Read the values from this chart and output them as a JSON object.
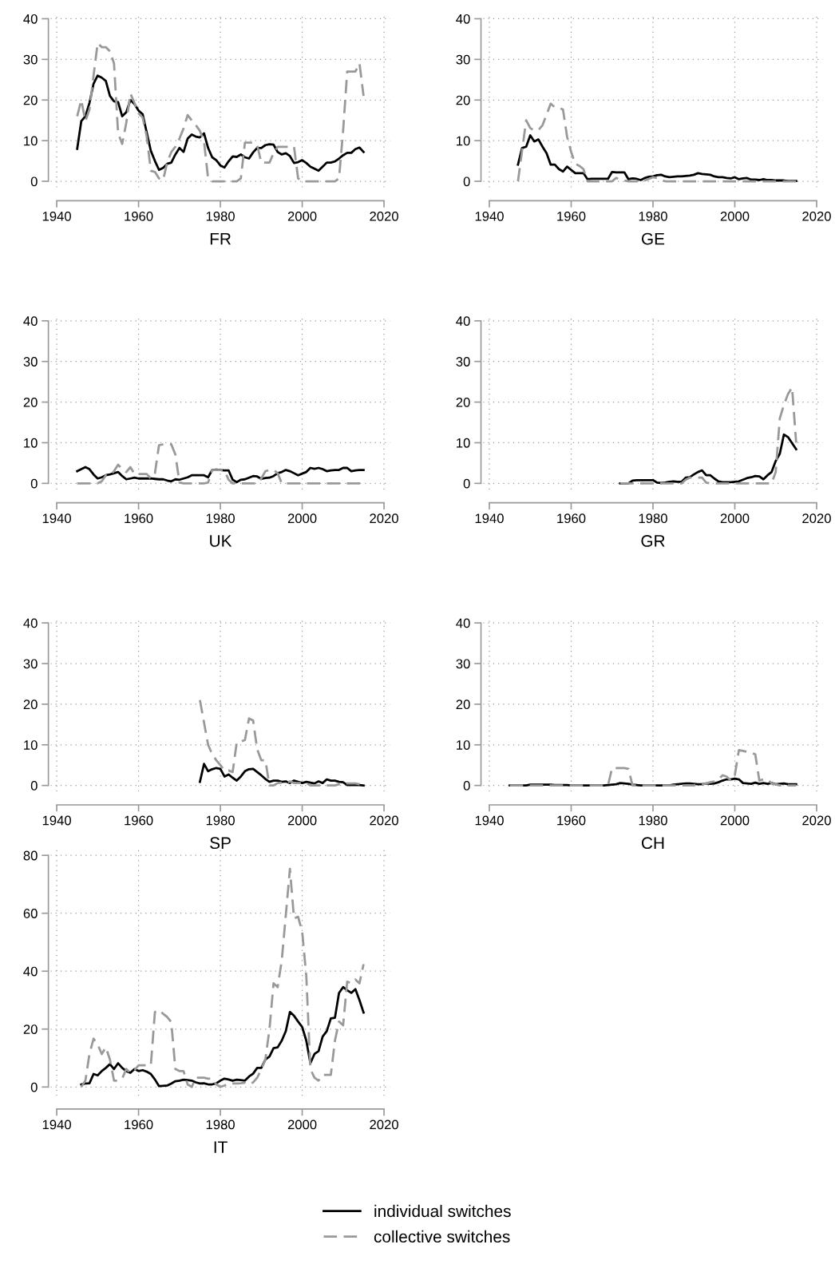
{
  "chart_data": [
    {
      "type": "line",
      "xlabel": "FR",
      "xlim": [
        1938.5,
        2021.5
      ],
      "xticks": [
        1940,
        1960,
        1980,
        2000,
        2020
      ],
      "ylim": [
        -1.5,
        41.5
      ],
      "yticks": [
        0,
        10,
        20,
        30,
        40
      ],
      "grid": true,
      "legend": "bottom",
      "x": [
        1945,
        1946,
        1947,
        1948,
        1949,
        1950,
        1951,
        1952,
        1953,
        1954,
        1955,
        1956,
        1957,
        1958,
        1959,
        1960,
        1961,
        1962,
        1963,
        1964,
        1965,
        1966,
        1967,
        1968,
        1969,
        1970,
        1971,
        1972,
        1973,
        1974,
        1975,
        1976,
        1977,
        1978,
        1979,
        1980,
        1981,
        1982,
        1983,
        1984,
        1985,
        1986,
        1987,
        1988,
        1989,
        1990,
        1991,
        1992,
        1993,
        1994,
        1995,
        1996,
        1997,
        1998,
        1999,
        2000,
        2001,
        2002,
        2003,
        2004,
        2005,
        2006,
        2007,
        2008,
        2009,
        2010,
        2011,
        2012,
        2013,
        2014,
        2015
      ],
      "series": [
        {
          "name": "individual switches",
          "color": "#000000",
          "line_style": "solid",
          "values": [
            8,
            14.8,
            16,
            19.3,
            24,
            26,
            25.5,
            24.7,
            21,
            19.7,
            19.5,
            16,
            17,
            20,
            19,
            17.4,
            16.5,
            12,
            7.5,
            5,
            2.8,
            3.3,
            4.3,
            4.6,
            6.6,
            8.2,
            7.2,
            10.5,
            11.5,
            11,
            10.8,
            11.8,
            8.2,
            5.9,
            5.2,
            3.9,
            3.4,
            4.9,
            6.1,
            6,
            6.6,
            5.9,
            5.6,
            7.1,
            8.2,
            8.2,
            8.9,
            9.1,
            9,
            7.2,
            6.6,
            6.9,
            6.2,
            4.5,
            4.7,
            5.2,
            4.5,
            3.6,
            3.1,
            2.6,
            3.6,
            4.6,
            4.6,
            4.9,
            5.6,
            6.4,
            7,
            7,
            7.9,
            8.3,
            7.2
          ]
        },
        {
          "name": "collective switches",
          "color": "#999999",
          "line_style": "dashed",
          "values": [
            16,
            20,
            14.8,
            17.7,
            26,
            34,
            33,
            33,
            32,
            29,
            11.8,
            9.2,
            14.4,
            21.6,
            19.3,
            16.7,
            15.7,
            11,
            2.6,
            2.3,
            0.7,
            0.3,
            4.6,
            7.2,
            8.5,
            10.5,
            13,
            16.3,
            15,
            13.8,
            12.4,
            9.8,
            0.7,
            0,
            0,
            0,
            0,
            0,
            0,
            0,
            0.7,
            9.5,
            9.5,
            9.5,
            8.9,
            4.6,
            4.6,
            4.6,
            6.9,
            8.5,
            8.5,
            8.5,
            8.5,
            8.5,
            0.7,
            0,
            0,
            0,
            0,
            0,
            0,
            0,
            0,
            0,
            0.7,
            12.4,
            27,
            27,
            27,
            29,
            21
          ]
        }
      ]
    },
    {
      "type": "line",
      "xlabel": "GE",
      "xlim": [
        1938.5,
        2021.5
      ],
      "xticks": [
        1940,
        1960,
        1980,
        2000,
        2020
      ],
      "ylim": [
        -1.5,
        41.5
      ],
      "yticks": [
        0,
        10,
        20,
        30,
        40
      ],
      "grid": true,
      "legend": "bottom",
      "x": [
        1947,
        1948,
        1949,
        1950,
        1951,
        1952,
        1953,
        1954,
        1955,
        1956,
        1957,
        1958,
        1959,
        1960,
        1961,
        1962,
        1963,
        1964,
        1965,
        1966,
        1967,
        1968,
        1969,
        1970,
        1971,
        1972,
        1973,
        1974,
        1975,
        1976,
        1977,
        1978,
        1979,
        1980,
        1981,
        1982,
        1983,
        1984,
        1985,
        1986,
        1987,
        1988,
        1989,
        1990,
        1991,
        1992,
        1993,
        1994,
        1995,
        1996,
        1997,
        1998,
        1999,
        2000,
        2001,
        2002,
        2003,
        2004,
        2005,
        2006,
        2007,
        2008,
        2009,
        2010,
        2011,
        2012,
        2013,
        2014,
        2015
      ],
      "series": [
        {
          "name": "individual switches",
          "color": "#000000",
          "line_style": "solid",
          "values": [
            4.1,
            8.2,
            8.5,
            11.3,
            9.8,
            10.3,
            8.5,
            6.9,
            4.1,
            4.1,
            3,
            2.4,
            3.6,
            2.8,
            2,
            2,
            2,
            0.5,
            0.6,
            0.6,
            0.6,
            0.6,
            0.6,
            2.3,
            2.2,
            2.2,
            2.2,
            0.5,
            0.7,
            0.6,
            0.3,
            0.8,
            1.1,
            1.2,
            1.5,
            1.6,
            1.2,
            1,
            1.1,
            1.2,
            1.2,
            1.3,
            1.4,
            1.6,
            2,
            1.8,
            1.7,
            1.6,
            1.2,
            1,
            1,
            0.8,
            0.7,
            1,
            0.5,
            0.7,
            0.8,
            0.4,
            0.4,
            0.3,
            0.5,
            0.3,
            0.3,
            0.2,
            0.2,
            0.2,
            0.1,
            0.1,
            0.1
          ]
        },
        {
          "name": "collective switches",
          "color": "#999999",
          "line_style": "dashed",
          "values": [
            0,
            7.5,
            15,
            13.1,
            12.5,
            12.6,
            13.8,
            16.4,
            19.1,
            18.2,
            18,
            17.7,
            11,
            7.2,
            4.3,
            3.8,
            3,
            0,
            0,
            0,
            0,
            0,
            0,
            0,
            0.8,
            0.5,
            0.2,
            0,
            0,
            0,
            0,
            0.2,
            0.6,
            1,
            0.8,
            0.3,
            0,
            0,
            0,
            0,
            0,
            0,
            0,
            0,
            0,
            0,
            0,
            0,
            0,
            0,
            0,
            0,
            0,
            0,
            0,
            0,
            0,
            0,
            0,
            0,
            0,
            0,
            0,
            0,
            0,
            0,
            0,
            0,
            0
          ]
        }
      ]
    },
    {
      "type": "line",
      "xlabel": "UK",
      "xlim": [
        1938.5,
        2021.5
      ],
      "xticks": [
        1940,
        1960,
        1980,
        2000,
        2020
      ],
      "ylim": [
        -1.5,
        41.5
      ],
      "yticks": [
        0,
        10,
        20,
        30,
        40
      ],
      "grid": true,
      "legend": "bottom",
      "x": [
        1945,
        1946,
        1947,
        1948,
        1949,
        1950,
        1951,
        1952,
        1953,
        1954,
        1955,
        1956,
        1957,
        1958,
        1959,
        1960,
        1961,
        1962,
        1963,
        1964,
        1965,
        1966,
        1967,
        1968,
        1969,
        1970,
        1971,
        1972,
        1973,
        1974,
        1975,
        1976,
        1977,
        1978,
        1979,
        1980,
        1981,
        1982,
        1983,
        1984,
        1985,
        1986,
        1987,
        1988,
        1989,
        1990,
        1991,
        1992,
        1993,
        1994,
        1995,
        1996,
        1997,
        1998,
        1999,
        2000,
        2001,
        2002,
        2003,
        2004,
        2005,
        2006,
        2007,
        2008,
        2009,
        2010,
        2011,
        2012,
        2013,
        2014,
        2015
      ],
      "series": [
        {
          "name": "individual switches",
          "color": "#000000",
          "line_style": "solid",
          "values": [
            3,
            3.5,
            4,
            3.5,
            2.2,
            1.2,
            1.5,
            2,
            2.2,
            2.5,
            2.8,
            1.8,
            1,
            1.2,
            1.4,
            1.2,
            1.2,
            1.2,
            1.2,
            1.1,
            1,
            1,
            0.7,
            0.5,
            1,
            0.9,
            1.2,
            1.5,
            2,
            2,
            2,
            2,
            1.5,
            3.3,
            3.4,
            3.3,
            3.2,
            3.2,
            0.9,
            0.3,
            0.9,
            1,
            1.4,
            1.8,
            1.7,
            1.1,
            1.3,
            1.4,
            1.8,
            2.5,
            2.8,
            3.3,
            3,
            2.5,
            2,
            2.4,
            2.8,
            3.8,
            3.6,
            3.8,
            3.5,
            3,
            3.2,
            3.3,
            3.3,
            3.8,
            3.8,
            3,
            3.2,
            3.3,
            3.3
          ]
        },
        {
          "name": "collective switches",
          "color": "#999999",
          "line_style": "dashed",
          "values": [
            0,
            0,
            0,
            0,
            0,
            0,
            0.5,
            2,
            2,
            3,
            4.6,
            3.5,
            2.8,
            4,
            2.3,
            2.3,
            2.3,
            2.3,
            1.2,
            2.5,
            9.4,
            9.6,
            9.6,
            9.6,
            7.1,
            0.2,
            0,
            0,
            0,
            0,
            0,
            0,
            0.2,
            3.3,
            3.3,
            3.3,
            3.2,
            0.9,
            0,
            0,
            0,
            0,
            0,
            0,
            0,
            1.2,
            3,
            3.3,
            3.3,
            2.5,
            0,
            0,
            0,
            0,
            0,
            0,
            0,
            0,
            0,
            0,
            0,
            0,
            0,
            0,
            0,
            0,
            0,
            0,
            0,
            0,
            0
          ]
        }
      ]
    },
    {
      "type": "line",
      "xlabel": "GR",
      "xlim": [
        1938.5,
        2021.5
      ],
      "xticks": [
        1940,
        1960,
        1980,
        2000,
        2020
      ],
      "ylim": [
        -1.5,
        41.5
      ],
      "yticks": [
        0,
        10,
        20,
        30,
        40
      ],
      "grid": true,
      "legend": "bottom",
      "x": [
        1972,
        1973,
        1974,
        1975,
        1976,
        1977,
        1978,
        1979,
        1980,
        1981,
        1982,
        1983,
        1984,
        1985,
        1986,
        1987,
        1988,
        1989,
        1990,
        1991,
        1992,
        1993,
        1994,
        1995,
        1996,
        1997,
        1998,
        1999,
        2000,
        2001,
        2002,
        2003,
        2004,
        2005,
        2006,
        2007,
        2008,
        2009,
        2010,
        2011,
        2012,
        2013,
        2014,
        2015
      ],
      "series": [
        {
          "name": "individual switches",
          "color": "#000000",
          "line_style": "solid",
          "values": [
            0,
            0,
            0,
            0.7,
            0.8,
            0.8,
            0.8,
            0.8,
            0.8,
            0.2,
            0.1,
            0.2,
            0.4,
            0.5,
            0.4,
            0.4,
            1.4,
            1.5,
            2.2,
            2.8,
            3.2,
            2,
            2,
            1.2,
            0.5,
            0.3,
            0.3,
            0.3,
            0.4,
            0.5,
            0.9,
            1.3,
            1.5,
            1.8,
            1.7,
            1,
            2,
            2.8,
            5.5,
            7.3,
            12,
            11.4,
            9.9,
            8.4
          ]
        },
        {
          "name": "collective switches",
          "color": "#999999",
          "line_style": "dashed",
          "values": [
            0,
            0,
            0,
            0,
            0,
            0,
            0,
            0,
            0,
            0,
            0,
            0,
            0,
            0,
            0,
            0,
            0.9,
            1.4,
            1.4,
            1.4,
            1.4,
            0.2,
            0,
            0,
            0,
            0,
            0,
            0,
            0,
            0,
            0,
            0,
            0,
            0,
            0,
            0,
            0,
            0,
            2.8,
            16,
            19.3,
            22,
            23.6,
            10
          ]
        }
      ]
    },
    {
      "type": "line",
      "xlabel": "SP",
      "xlim": [
        1938.5,
        2021.5
      ],
      "xticks": [
        1940,
        1960,
        1980,
        2000,
        2020
      ],
      "ylim": [
        -1.5,
        41.5
      ],
      "yticks": [
        0,
        10,
        20,
        30,
        40
      ],
      "grid": true,
      "legend": "bottom",
      "x": [
        1975,
        1976,
        1977,
        1978,
        1979,
        1980,
        1981,
        1982,
        1983,
        1984,
        1985,
        1986,
        1987,
        1988,
        1989,
        1990,
        1991,
        1992,
        1993,
        1994,
        1995,
        1996,
        1997,
        1998,
        1999,
        2000,
        2001,
        2002,
        2003,
        2004,
        2005,
        2006,
        2007,
        2008,
        2009,
        2010,
        2011,
        2012,
        2013,
        2014,
        2015
      ],
      "series": [
        {
          "name": "individual switches",
          "color": "#000000",
          "line_style": "solid",
          "values": [
            0.9,
            5.3,
            3.5,
            4,
            4.3,
            4.1,
            2.2,
            2.7,
            1.9,
            1.2,
            2.2,
            3.5,
            4,
            4.1,
            3.3,
            2.5,
            1.6,
            0.9,
            1.2,
            1.2,
            0.9,
            1,
            0.6,
            1.2,
            0.9,
            0.6,
            0.9,
            0.7,
            0.5,
            1,
            0.6,
            1.5,
            1.2,
            1.2,
            0.9,
            0.8,
            0.1,
            0.1,
            0.1,
            0.1,
            0
          ]
        },
        {
          "name": "collective switches",
          "color": "#999999",
          "line_style": "dashed",
          "values": [
            21,
            15.5,
            10,
            7.7,
            6.2,
            5,
            3.7,
            3.7,
            3.3,
            10.6,
            10.8,
            11.2,
            16.5,
            16,
            8.9,
            6.2,
            6.2,
            0,
            0,
            0.6,
            0.7,
            0.5,
            1,
            0.6,
            0.6,
            0.6,
            0.6,
            0,
            0,
            0,
            0,
            0,
            0,
            0,
            0.3,
            0.4,
            0.5,
            0.5,
            0.5,
            0.3,
            0
          ]
        }
      ]
    },
    {
      "type": "line",
      "xlabel": "CH",
      "xlim": [
        1938.5,
        2021.5
      ],
      "xticks": [
        1940,
        1960,
        1980,
        2000,
        2020
      ],
      "ylim": [
        -1.5,
        41.5
      ],
      "yticks": [
        0,
        10,
        20,
        30,
        40
      ],
      "grid": true,
      "legend": "bottom",
      "x": [
        1945,
        1946,
        1947,
        1948,
        1949,
        1950,
        1951,
        1952,
        1953,
        1954,
        1955,
        1956,
        1957,
        1958,
        1959,
        1960,
        1961,
        1962,
        1963,
        1964,
        1965,
        1966,
        1967,
        1968,
        1969,
        1970,
        1971,
        1972,
        1973,
        1974,
        1975,
        1976,
        1977,
        1978,
        1979,
        1980,
        1981,
        1982,
        1983,
        1984,
        1985,
        1986,
        1987,
        1988,
        1989,
        1990,
        1991,
        1992,
        1993,
        1994,
        1995,
        1996,
        1997,
        1998,
        1999,
        2000,
        2001,
        2002,
        2003,
        2004,
        2005,
        2006,
        2007,
        2008,
        2009,
        2010,
        2011,
        2012,
        2013,
        2014,
        2015
      ],
      "series": [
        {
          "name": "individual switches",
          "color": "#000000",
          "line_style": "solid",
          "values": [
            0,
            0,
            0,
            0,
            0,
            0.2,
            0.2,
            0.2,
            0.2,
            0.2,
            0.2,
            0.1,
            0.1,
            0.1,
            0.1,
            0,
            0,
            0,
            0,
            0,
            0,
            0,
            0,
            0,
            0.1,
            0.2,
            0.3,
            0.6,
            0.5,
            0.4,
            0.2,
            0.1,
            0,
            0,
            0,
            0,
            0,
            0,
            0,
            0,
            0.2,
            0.3,
            0.4,
            0.5,
            0.5,
            0.4,
            0.3,
            0.3,
            0.5,
            0.4,
            0.5,
            0.8,
            1.2,
            1.5,
            1.5,
            1.7,
            1.5,
            0.6,
            0.5,
            0.4,
            0.7,
            0.4,
            0.6,
            0.4,
            0.6,
            0.3,
            0.4,
            0.5,
            0.3,
            0.3,
            0.3
          ]
        },
        {
          "name": "collective switches",
          "color": "#999999",
          "line_style": "dashed",
          "values": [
            0,
            0,
            0,
            0,
            0,
            0,
            0,
            0,
            0,
            0,
            0,
            0,
            0,
            0,
            0,
            0,
            0,
            0,
            0,
            0,
            0,
            0,
            0,
            0,
            0,
            4.3,
            4.3,
            4.3,
            4.3,
            4.1,
            0,
            0,
            0,
            0,
            0,
            0,
            0,
            0,
            0,
            0,
            0,
            0,
            0,
            0,
            0,
            0,
            0.5,
            0.3,
            0.5,
            0.8,
            1,
            1.5,
            2.5,
            2.2,
            1.2,
            2.5,
            8.7,
            8.5,
            8.3,
            8,
            7.7,
            1.2,
            1.5,
            1.5,
            0.5,
            0.3,
            0,
            0.2,
            0,
            0,
            0
          ]
        }
      ]
    },
    {
      "type": "line",
      "xlabel": "IT",
      "xlim": [
        1938.5,
        2021.5
      ],
      "xticks": [
        1940,
        1960,
        1980,
        2000,
        2020
      ],
      "ylim": [
        -3,
        83
      ],
      "yticks": [
        0,
        20,
        40,
        60,
        80
      ],
      "grid": true,
      "legend": "bottom",
      "x": [
        1946,
        1947,
        1948,
        1949,
        1950,
        1951,
        1952,
        1953,
        1954,
        1955,
        1956,
        1957,
        1958,
        1959,
        1960,
        1961,
        1962,
        1963,
        1964,
        1965,
        1966,
        1967,
        1968,
        1969,
        1970,
        1971,
        1972,
        1973,
        1974,
        1975,
        1976,
        1977,
        1978,
        1979,
        1980,
        1981,
        1982,
        1983,
        1984,
        1985,
        1986,
        1987,
        1988,
        1989,
        1990,
        1991,
        1992,
        1993,
        1994,
        1995,
        1996,
        1997,
        1998,
        1999,
        2000,
        2001,
        2002,
        2003,
        2004,
        2005,
        2006,
        2007,
        2008,
        2009,
        2010,
        2011,
        2012,
        2013,
        2014,
        2015
      ],
      "series": [
        {
          "name": "individual switches",
          "color": "#000000",
          "line_style": "solid",
          "values": [
            0.9,
            1.2,
            1.3,
            4.5,
            4,
            5.5,
            6.6,
            7.9,
            6.2,
            8.2,
            6.6,
            5.5,
            4.9,
            6.2,
            5.5,
            5.8,
            5.3,
            4.5,
            2.6,
            0.3,
            0.4,
            0.5,
            1.2,
            2,
            2.2,
            2.5,
            2.4,
            2.2,
            1.6,
            1.2,
            1.3,
            0.9,
            0.9,
            1.3,
            2.2,
            2.9,
            2.6,
            2.2,
            2.5,
            2.4,
            2.2,
            3.6,
            4.6,
            6.6,
            6.6,
            9.5,
            10.5,
            13.4,
            13.7,
            16,
            19.3,
            25.9,
            24.6,
            22.6,
            20.7,
            16,
            8.2,
            11.4,
            12.4,
            17.4,
            19.3,
            23.7,
            23.9,
            32.5,
            34.5,
            33.4,
            32.5,
            33.8,
            30,
            25.7
          ]
        },
        {
          "name": "collective switches",
          "color": "#999999",
          "line_style": "dashed",
          "values": [
            0,
            2.2,
            11.4,
            16.7,
            14.7,
            11.4,
            13.7,
            9.5,
            2.2,
            2.2,
            2.9,
            6.2,
            4.9,
            5.8,
            7.5,
            7.5,
            7.5,
            7.5,
            25.9,
            26.6,
            25.3,
            24.2,
            22.4,
            6.2,
            5.5,
            5.5,
            0.9,
            0,
            3.2,
            3.2,
            3.2,
            2.9,
            2.9,
            0.9,
            0,
            0.5,
            1.2,
            1.2,
            1.2,
            1.3,
            1.5,
            0.9,
            1.6,
            3.2,
            6.2,
            9.5,
            20,
            35.8,
            34.5,
            43.7,
            59.5,
            75.3,
            58.2,
            58.8,
            53.6,
            38.4,
            6.2,
            3.2,
            2.2,
            4.2,
            4.2,
            4.2,
            16,
            22.6,
            21.3,
            36.4,
            35.8,
            37.1,
            35.8,
            42.4
          ]
        }
      ]
    }
  ]
}
